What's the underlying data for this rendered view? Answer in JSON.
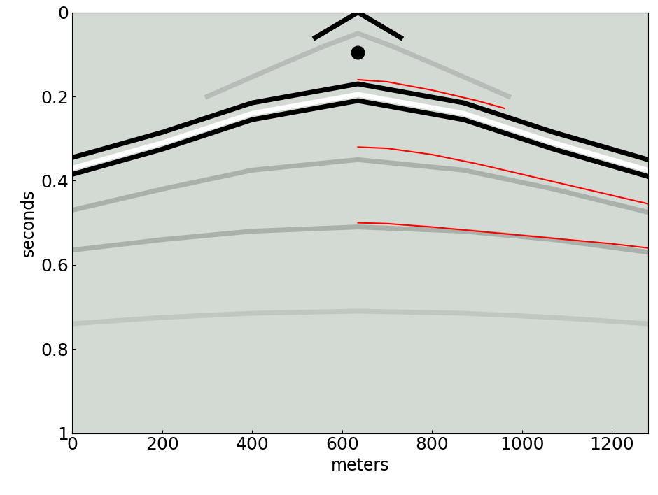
{
  "chart_data": {
    "type": "line",
    "xlabel": "meters",
    "ylabel": "seconds",
    "xlim": [
      0,
      1280
    ],
    "xticks": [
      0,
      200,
      400,
      600,
      800,
      1000,
      1200
    ],
    "ylim": [
      1,
      0
    ],
    "yticks": [
      0,
      0.2,
      0.4,
      0.6,
      0.8,
      1
    ],
    "grid": false,
    "series": [
      {
        "color": "#000000",
        "line_style": "solid",
        "x": [
          540,
          635,
          730
        ],
        "values": [
          0.06,
          0.0,
          0.06
        ]
      },
      {
        "color": "#b8bcb8",
        "line_style": "solid",
        "x": [
          300,
          450,
          560,
          635,
          710,
          820,
          970
        ],
        "values": [
          0.2,
          0.13,
          0.08,
          0.05,
          0.08,
          0.13,
          0.2
        ]
      },
      {
        "color": "#000000",
        "line_style": "solid",
        "x": [
          0,
          200,
          400,
          635,
          870,
          1070,
          1280
        ],
        "values": [
          0.345,
          0.285,
          0.215,
          0.17,
          0.215,
          0.285,
          0.35
        ]
      },
      {
        "color": "#ffffff",
        "line_style": "solid",
        "x": [
          0,
          200,
          400,
          635,
          870,
          1070,
          1280
        ],
        "values": [
          0.37,
          0.31,
          0.24,
          0.195,
          0.24,
          0.31,
          0.375
        ]
      },
      {
        "color": "#000000",
        "line_style": "solid",
        "x": [
          0,
          200,
          400,
          635,
          870,
          1070,
          1280
        ],
        "values": [
          0.385,
          0.325,
          0.255,
          0.21,
          0.255,
          0.325,
          0.39
        ]
      },
      {
        "color": "#aab0aa",
        "line_style": "solid",
        "x": [
          0,
          200,
          400,
          635,
          870,
          1070,
          1280
        ],
        "values": [
          0.47,
          0.42,
          0.375,
          0.35,
          0.375,
          0.42,
          0.475
        ]
      },
      {
        "color": "#aab0aa",
        "line_style": "solid",
        "x": [
          0,
          200,
          400,
          635,
          870,
          1070,
          1280
        ],
        "values": [
          0.565,
          0.54,
          0.52,
          0.51,
          0.52,
          0.54,
          0.57
        ]
      },
      {
        "color": "#c0c6c0",
        "line_style": "solid",
        "x": [
          0,
          200,
          400,
          635,
          870,
          1070,
          1280
        ],
        "values": [
          0.74,
          0.725,
          0.715,
          0.71,
          0.715,
          0.725,
          0.74
        ]
      },
      {
        "type": "scatter",
        "color": "#000000",
        "marker": "o",
        "x": [
          635
        ],
        "values": [
          0.095
        ]
      },
      {
        "color": "#ff0000",
        "line_style": "solid",
        "x": [
          635,
          700,
          800,
          900,
          960
        ],
        "values": [
          0.16,
          0.165,
          0.185,
          0.21,
          0.228
        ]
      },
      {
        "color": "#ff0000",
        "line_style": "solid",
        "x": [
          635,
          700,
          800,
          900,
          1000,
          1100,
          1200,
          1280
        ],
        "values": [
          0.32,
          0.323,
          0.338,
          0.36,
          0.385,
          0.41,
          0.435,
          0.455
        ]
      },
      {
        "color": "#ff0000",
        "line_style": "solid",
        "x": [
          635,
          700,
          800,
          900,
          1000,
          1100,
          1200,
          1280
        ],
        "values": [
          0.5,
          0.502,
          0.51,
          0.52,
          0.53,
          0.54,
          0.55,
          0.56
        ]
      }
    ]
  }
}
